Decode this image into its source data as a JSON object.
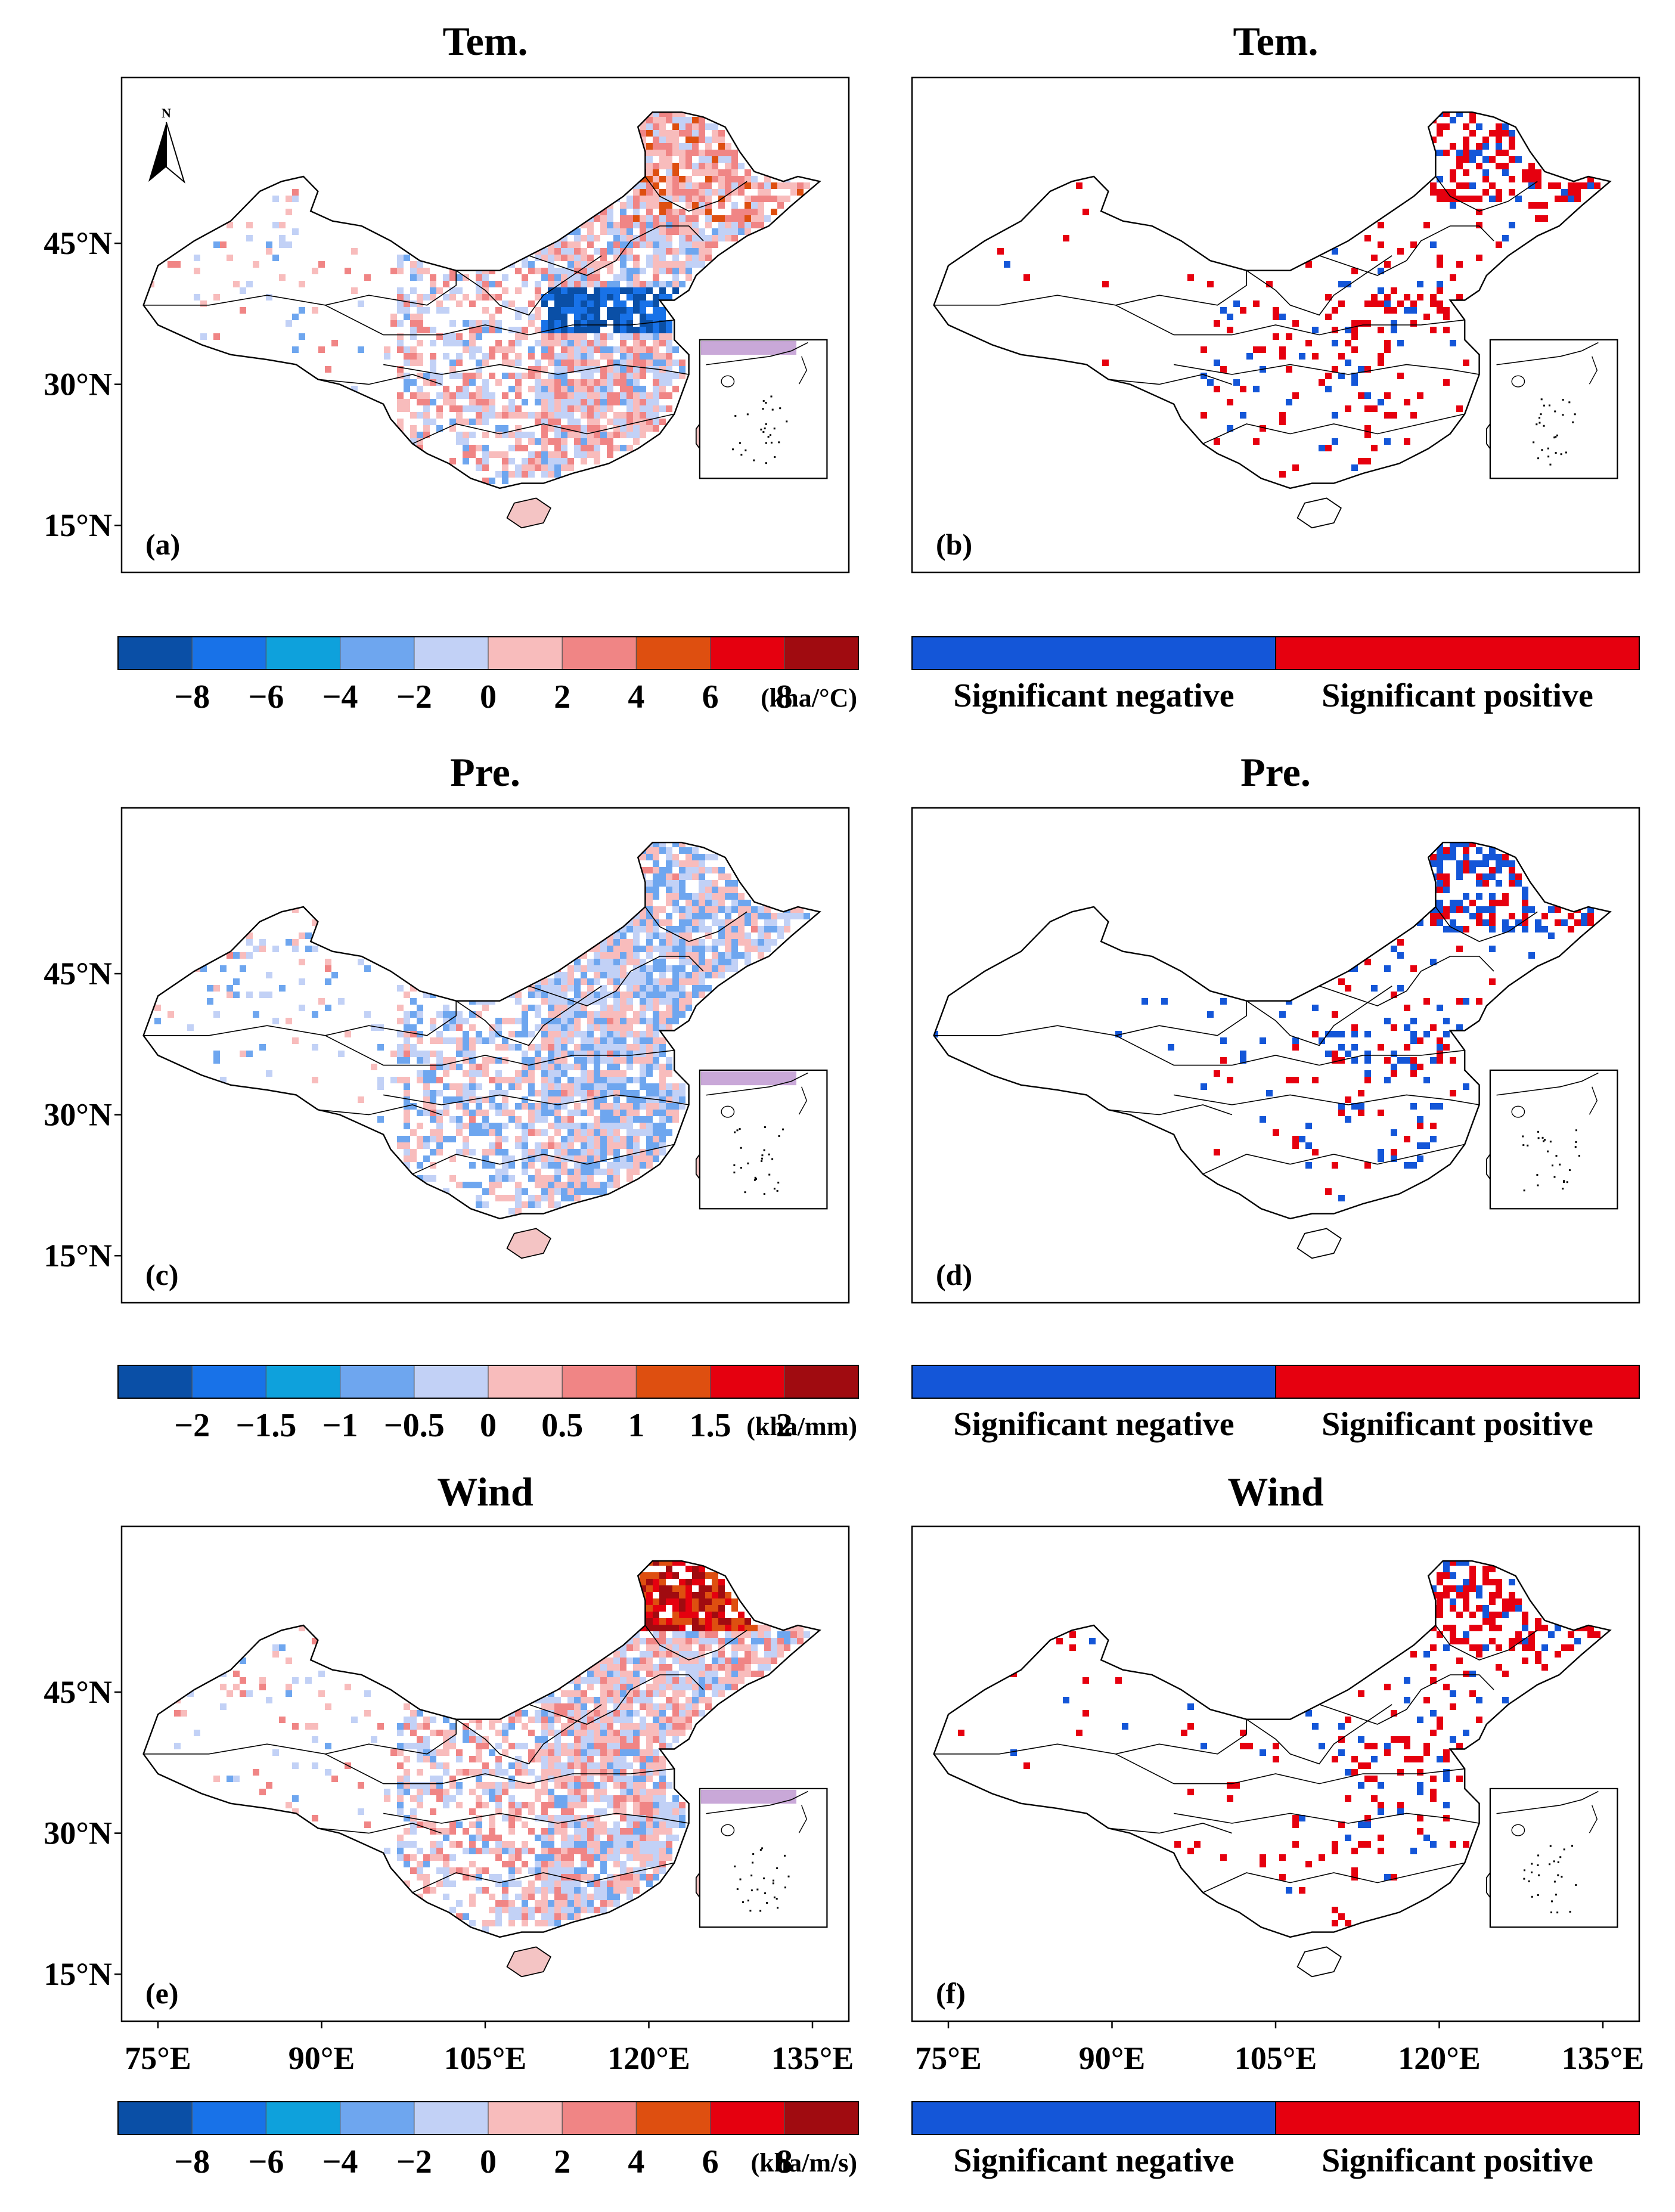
{
  "figure": {
    "panels": [
      {
        "id": "a",
        "label": "(a)",
        "title": "Tem.",
        "kind": "continuous",
        "legend_index": 0,
        "seed": 11,
        "hotspot": "wheat-belt-negative"
      },
      {
        "id": "b",
        "label": "(b)",
        "title": "Tem.",
        "kind": "significance",
        "legend_index": 1,
        "seed": 12,
        "hotspot": "northeast-positive"
      },
      {
        "id": "c",
        "label": "(c)",
        "title": "Pre.",
        "kind": "continuous",
        "legend_index": 2,
        "seed": 13,
        "hotspot": "mixed-blue"
      },
      {
        "id": "d",
        "label": "(d)",
        "title": "Pre.",
        "kind": "significance",
        "legend_index": 3,
        "seed": 14,
        "hotspot": "northeast-negative"
      },
      {
        "id": "e",
        "label": "(e)",
        "title": "Wind",
        "kind": "continuous",
        "legend_index": 4,
        "seed": 15,
        "hotspot": "northeast-positive"
      },
      {
        "id": "f",
        "label": "(f)",
        "title": "Wind",
        "kind": "significance",
        "legend_index": 5,
        "seed": 16,
        "hotspot": "northeast-positive"
      }
    ],
    "lat_ticks": [
      "15°N",
      "30°N",
      "45°N"
    ],
    "lon_ticks": [
      "75°E",
      "90°E",
      "105°E",
      "120°E",
      "135°E"
    ],
    "north_arrow_label": "N",
    "legends": [
      {
        "type": "continuous",
        "ticks": [
          "−8",
          "−6",
          "−4",
          "−2",
          "0",
          "2",
          "4",
          "6",
          "8"
        ],
        "unit": "(kha/°C)",
        "colors": [
          "#0a4fa6",
          "#1872e8",
          "#0ea1dc",
          "#6ea6ef",
          "#c2d1f6",
          "#f8bcbc",
          "#f08585",
          "#de4f10",
          "#e5000f",
          "#a00b10"
        ]
      },
      {
        "type": "significance",
        "negative_label": "Significant negative",
        "positive_label": "Significant positive",
        "negative_color": "#1456d8",
        "positive_color": "#e6000f"
      },
      {
        "type": "continuous",
        "ticks": [
          "−2",
          "−1.5",
          "−1",
          "−0.5",
          "0",
          "0.5",
          "1",
          "1.5",
          "2"
        ],
        "unit": "(kha/mm)",
        "colors": [
          "#0a4fa6",
          "#1872e8",
          "#0ea1dc",
          "#6ea6ef",
          "#c2d1f6",
          "#f8bcbc",
          "#f08585",
          "#de4f10",
          "#e5000f",
          "#a00b10"
        ]
      },
      {
        "type": "significance",
        "negative_label": "Significant negative",
        "positive_label": "Significant positive",
        "negative_color": "#1456d8",
        "positive_color": "#e6000f"
      },
      {
        "type": "continuous",
        "ticks": [
          "−8",
          "−6",
          "−4",
          "−2",
          "0",
          "2",
          "4",
          "6",
          "8"
        ],
        "unit": "(kha/m/s)",
        "colors": [
          "#0a4fa6",
          "#1872e8",
          "#0ea1dc",
          "#6ea6ef",
          "#c2d1f6",
          "#f8bcbc",
          "#f08585",
          "#de4f10",
          "#e5000f",
          "#a00b10"
        ]
      },
      {
        "type": "significance",
        "negative_label": "Significant negative",
        "positive_label": "Significant positive",
        "negative_color": "#1456d8",
        "positive_color": "#e6000f"
      }
    ]
  }
}
